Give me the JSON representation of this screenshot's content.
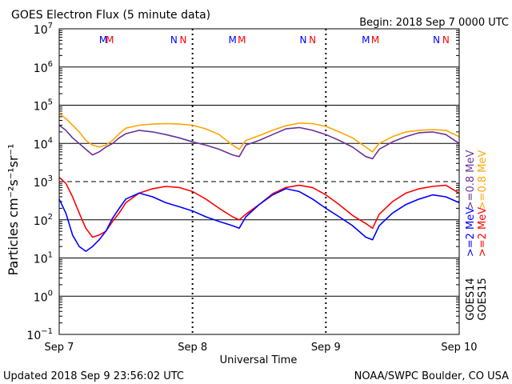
{
  "header": {
    "title": "GOES Electron Flux (5 minute data)",
    "begin": "Begin: 2018 Sep 7 0000 UTC"
  },
  "footer": {
    "updated": "Updated 2018 Sep  9 23:56:02 UTC",
    "credit": "NOAA/SWPC Boulder, CO USA"
  },
  "colors": {
    "goes14_ge2": "#0000ff",
    "goes15_ge2": "#ff0000",
    "goes14_ge08": "#663399",
    "goes15_ge08": "#ffa500",
    "threshold": "#000000"
  },
  "chart_data": {
    "type": "line",
    "ylabel": "Particles cm⁻²s⁻¹sr⁻¹",
    "xlabel": "Universal Time",
    "yscale": "log",
    "ylim": [
      0.1,
      10000000
    ],
    "yticks": [
      {
        "base": "10",
        "exp": "7"
      },
      {
        "base": "10",
        "exp": "6"
      },
      {
        "base": "10",
        "exp": "5"
      },
      {
        "base": "10",
        "exp": "4"
      },
      {
        "base": "10",
        "exp": "3"
      },
      {
        "base": "10",
        "exp": "2"
      },
      {
        "base": "10",
        "exp": "1"
      },
      {
        "base": "10",
        "exp": "0"
      },
      {
        "base": "10",
        "exp": "−1"
      }
    ],
    "xticks": [
      "Sep 7",
      "Sep 8",
      "Sep 9",
      "Sep 10"
    ],
    "xlim_days": [
      0,
      3
    ],
    "threshold": 1000,
    "markers": [
      {
        "label": "M",
        "day": 0.33,
        "series": "goes14"
      },
      {
        "label": "M",
        "day": 0.38,
        "series": "goes15"
      },
      {
        "label": "N",
        "day": 0.86,
        "series": "goes14"
      },
      {
        "label": "N",
        "day": 0.93,
        "series": "goes15"
      },
      {
        "label": "M",
        "day": 1.3,
        "series": "goes14"
      },
      {
        "label": "M",
        "day": 1.37,
        "series": "goes15"
      },
      {
        "label": "N",
        "day": 1.83,
        "series": "goes14"
      },
      {
        "label": "N",
        "day": 1.9,
        "series": "goes15"
      },
      {
        "label": "M",
        "day": 2.3,
        "series": "goes14"
      },
      {
        "label": "M",
        "day": 2.37,
        "series": "goes15"
      },
      {
        "label": "N",
        "day": 2.83,
        "series": "goes14"
      },
      {
        "label": "N",
        "day": 2.9,
        "series": "goes15"
      }
    ],
    "legend": {
      "goes15_ge08": ">=0.8 MeV",
      "goes14_ge08": ">=0.8 MeV",
      "goes15_ge2": ">=2 MeV",
      "goes14_ge2": ">=2 MeV",
      "goes15_label": "GOES15",
      "goes14_label": "GOES14"
    },
    "series": [
      {
        "key": "goes15_ge08",
        "name": "GOES15 >=0.8 MeV",
        "x": [
          0,
          0.05,
          0.1,
          0.15,
          0.2,
          0.25,
          0.3,
          0.35,
          0.4,
          0.45,
          0.5,
          0.6,
          0.7,
          0.8,
          0.9,
          1.0,
          1.1,
          1.2,
          1.3,
          1.35,
          1.4,
          1.5,
          1.6,
          1.7,
          1.8,
          1.9,
          2.0,
          2.1,
          2.2,
          2.3,
          2.35,
          2.4,
          2.5,
          2.6,
          2.7,
          2.8,
          2.9,
          3.0
        ],
        "y": [
          60000,
          45000,
          30000,
          20000,
          12000,
          9000,
          8000,
          9000,
          12000,
          18000,
          25000,
          30000,
          32000,
          33000,
          32000,
          30000,
          24000,
          17000,
          9000,
          7000,
          12000,
          16000,
          22000,
          29000,
          34000,
          33000,
          28000,
          20000,
          14000,
          8000,
          6000,
          10000,
          15000,
          20000,
          22000,
          23000,
          22000,
          15000
        ]
      },
      {
        "key": "goes14_ge08",
        "name": "GOES14 >=0.8 MeV",
        "x": [
          0,
          0.05,
          0.1,
          0.15,
          0.2,
          0.25,
          0.3,
          0.35,
          0.4,
          0.45,
          0.5,
          0.6,
          0.7,
          0.8,
          0.9,
          1.0,
          1.1,
          1.2,
          1.3,
          1.35,
          1.4,
          1.5,
          1.6,
          1.7,
          1.8,
          1.9,
          2.0,
          2.1,
          2.2,
          2.3,
          2.35,
          2.4,
          2.5,
          2.6,
          2.7,
          2.8,
          2.9,
          3.0
        ],
        "y": [
          30000,
          22000,
          14000,
          10000,
          7000,
          5000,
          6000,
          8000,
          10000,
          14000,
          18000,
          22000,
          20000,
          17000,
          14000,
          11000,
          9000,
          7000,
          5000,
          4500,
          9000,
          12000,
          17000,
          24000,
          26000,
          22000,
          17000,
          12000,
          8000,
          4500,
          4000,
          7000,
          11000,
          15000,
          19000,
          20000,
          17000,
          10000
        ]
      },
      {
        "key": "goes15_ge2",
        "name": "GOES15 >=2 MeV",
        "x": [
          0,
          0.05,
          0.1,
          0.15,
          0.2,
          0.25,
          0.3,
          0.35,
          0.4,
          0.45,
          0.5,
          0.6,
          0.7,
          0.8,
          0.9,
          1.0,
          1.1,
          1.2,
          1.3,
          1.35,
          1.4,
          1.5,
          1.6,
          1.7,
          1.8,
          1.9,
          2.0,
          2.1,
          2.2,
          2.3,
          2.35,
          2.4,
          2.5,
          2.6,
          2.7,
          2.8,
          2.9,
          3.0
        ],
        "y": [
          1300,
          900,
          400,
          150,
          60,
          35,
          40,
          50,
          90,
          150,
          280,
          500,
          650,
          750,
          700,
          550,
          350,
          200,
          120,
          100,
          140,
          250,
          480,
          700,
          800,
          700,
          450,
          250,
          130,
          80,
          60,
          140,
          300,
          500,
          650,
          750,
          800,
          500
        ]
      },
      {
        "key": "goes14_ge2",
        "name": "GOES14 >=2 MeV",
        "x": [
          0,
          0.05,
          0.1,
          0.15,
          0.2,
          0.25,
          0.3,
          0.35,
          0.4,
          0.45,
          0.5,
          0.6,
          0.7,
          0.8,
          0.9,
          1.0,
          1.1,
          1.2,
          1.3,
          1.35,
          1.4,
          1.5,
          1.6,
          1.7,
          1.8,
          1.9,
          2.0,
          2.1,
          2.2,
          2.3,
          2.35,
          2.4,
          2.5,
          2.6,
          2.7,
          2.8,
          2.9,
          3.0
        ],
        "y": [
          350,
          150,
          40,
          20,
          15,
          20,
          30,
          50,
          110,
          200,
          350,
          500,
          400,
          280,
          220,
          170,
          120,
          90,
          70,
          60,
          120,
          250,
          450,
          650,
          550,
          350,
          200,
          120,
          70,
          35,
          30,
          70,
          150,
          250,
          350,
          450,
          400,
          280
        ]
      }
    ]
  }
}
